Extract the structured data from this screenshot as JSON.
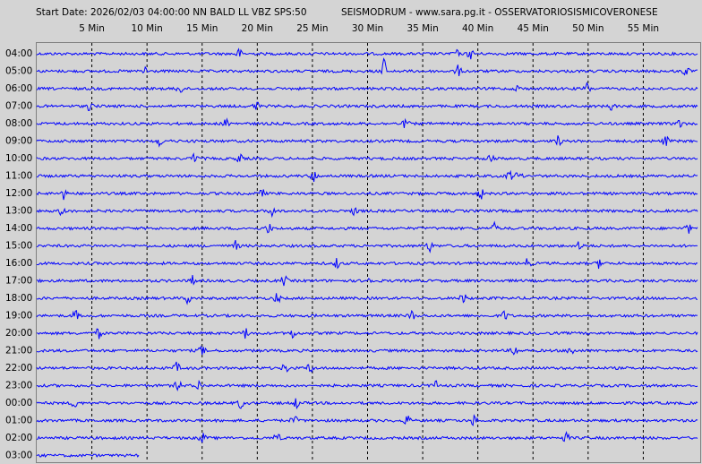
{
  "chart_data": {
    "type": "helicorder",
    "title": "Start Date: 2026/02/03 04:00:00 NN BALD LL VBZ SPS:50",
    "subtitle": "SEISMODRUM - www.sara.pg.it - OSSERVATORIOSISMICOVERONESE",
    "color": "#0000ff",
    "xlim": [
      0,
      60
    ],
    "xticks": [
      {
        "value": 5,
        "label": "5 Min"
      },
      {
        "value": 10,
        "label": "10 Min"
      },
      {
        "value": 15,
        "label": "15 Min"
      },
      {
        "value": 20,
        "label": "20 Min"
      },
      {
        "value": 25,
        "label": "25 Min"
      },
      {
        "value": 30,
        "label": "30 Min"
      },
      {
        "value": 35,
        "label": "35 Min"
      },
      {
        "value": 40,
        "label": "40 Min"
      },
      {
        "value": 45,
        "label": "45 Min"
      },
      {
        "value": 50,
        "label": "50 Min"
      },
      {
        "value": 55,
        "label": "55 Min"
      }
    ],
    "categories": [
      "04:00",
      "05:00",
      "06:00",
      "07:00",
      "08:00",
      "09:00",
      "10:00",
      "11:00",
      "12:00",
      "13:00",
      "14:00",
      "15:00",
      "16:00",
      "17:00",
      "18:00",
      "19:00",
      "20:00",
      "21:00",
      "22:00",
      "23:00",
      "00:00",
      "01:00",
      "02:00",
      "03:00"
    ]
  }
}
